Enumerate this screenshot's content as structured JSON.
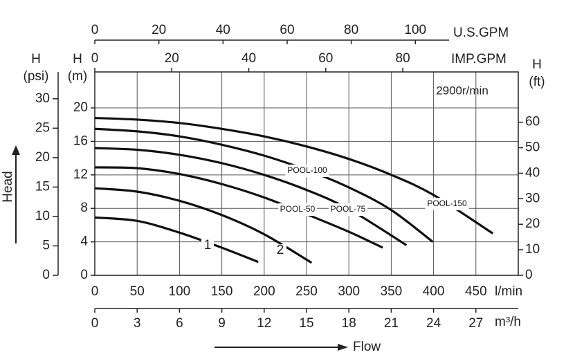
{
  "chart_data": {
    "type": "line",
    "speed_note": "2900r/min",
    "x_title": "Flow",
    "x_unit": "l/min",
    "xlim": [
      0,
      500
    ],
    "xticks": [
      0,
      50,
      100,
      150,
      200,
      250,
      300,
      350,
      400,
      450
    ],
    "y_title": "H",
    "y_unit": "(m)",
    "ylim": [
      0,
      24.3
    ],
    "yticks": [
      0,
      4,
      8,
      12,
      16,
      20
    ],
    "y2_title": "H",
    "y2_unit": "(ft)",
    "y2lim": [
      0,
      79.7
    ],
    "y2ticks": [
      0,
      10,
      20,
      30,
      40,
      50,
      60
    ],
    "left_axis": {
      "title": "H",
      "unit": "(psi)",
      "lim": [
        0,
        34.56
      ],
      "ticks": [
        0,
        5,
        10,
        15,
        20,
        25,
        30
      ]
    },
    "head_label": "Head",
    "bottom2_axis": {
      "unit": "m³/h",
      "lim": [
        0,
        30
      ],
      "ticks": [
        0,
        3,
        6,
        9,
        12,
        15,
        18,
        21,
        24,
        27
      ]
    },
    "top_axis": {
      "unit": "U.S.GPM",
      "lim": [
        0,
        132.1
      ],
      "ticks": [
        0,
        20,
        40,
        60,
        80,
        100
      ]
    },
    "top2_axis": {
      "unit": "IMP.GPM",
      "lim": [
        0,
        110
      ],
      "ticks": [
        0,
        20,
        40,
        60,
        80
      ]
    },
    "grid": true,
    "series": [
      {
        "name": "1",
        "color": "#111111",
        "x": [
          0,
          50,
          100,
          150,
          193
        ],
        "values": [
          6.9,
          6.5,
          5.1,
          3.3,
          1.6
        ]
      },
      {
        "name": "2",
        "color": "#111111",
        "x": [
          0,
          50,
          100,
          150,
          200,
          256
        ],
        "values": [
          10.4,
          10.0,
          8.9,
          7.2,
          4.9,
          1.5
        ]
      },
      {
        "name": "POOL-50",
        "color": "#111111",
        "x": [
          0,
          50,
          100,
          150,
          200,
          250,
          300,
          340
        ],
        "values": [
          12.9,
          12.8,
          12.1,
          10.9,
          9.3,
          7.3,
          5.2,
          3.3
        ]
      },
      {
        "name": "POOL-75",
        "color": "#111111",
        "x": [
          0,
          50,
          100,
          150,
          200,
          250,
          300,
          368
        ],
        "values": [
          15.2,
          15.0,
          14.4,
          13.4,
          12.0,
          10.2,
          7.9,
          3.6
        ]
      },
      {
        "name": "POOL-100",
        "color": "#111111",
        "x": [
          0,
          50,
          100,
          150,
          200,
          250,
          300,
          350,
          399
        ],
        "values": [
          17.5,
          17.2,
          16.6,
          15.6,
          14.3,
          12.6,
          10.5,
          7.8,
          4.0
        ]
      },
      {
        "name": "POOL-150",
        "color": "#111111",
        "x": [
          0,
          50,
          100,
          150,
          200,
          250,
          300,
          350,
          400,
          470
        ],
        "values": [
          18.8,
          18.6,
          18.2,
          17.5,
          16.6,
          15.4,
          13.9,
          12.0,
          9.6,
          5.0
        ]
      }
    ]
  }
}
